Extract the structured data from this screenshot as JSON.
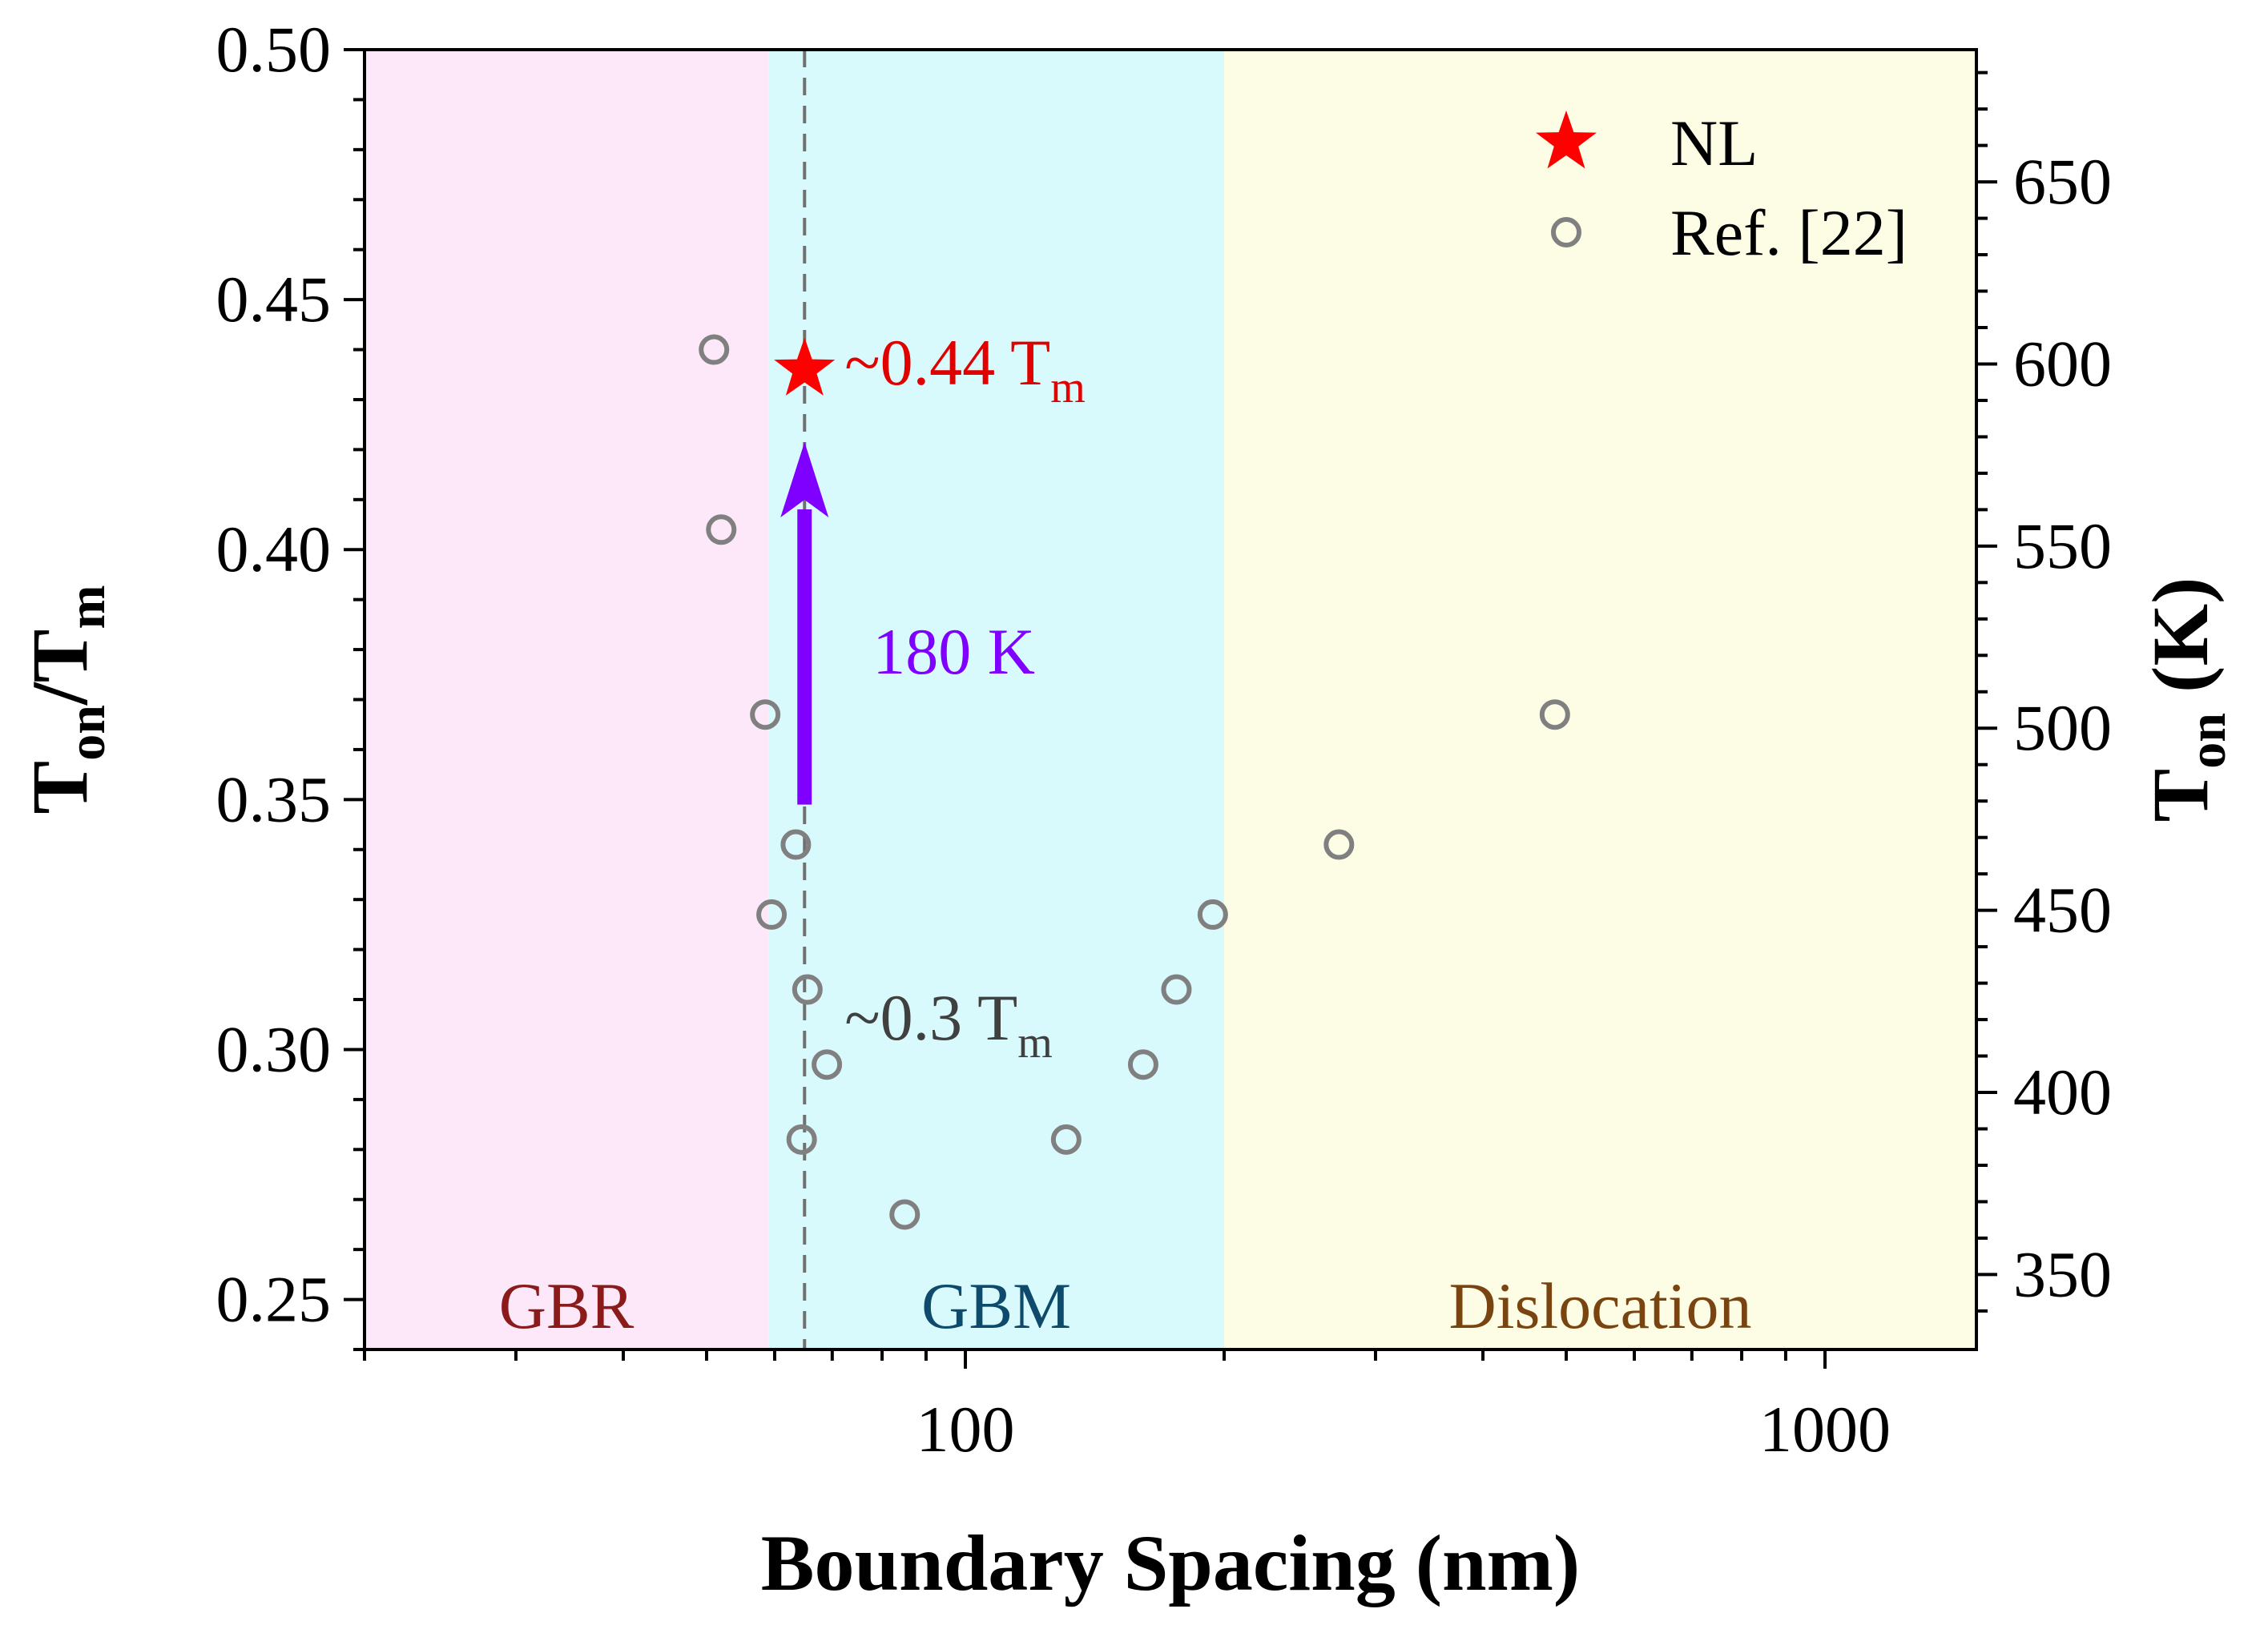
{
  "chart_data": {
    "type": "scatter",
    "title": "",
    "xlabel": "Boundary Spacing (nm)",
    "ylabel_left": {
      "main": "T",
      "sub1": "on",
      "sep": "/T",
      "sub2": "m"
    },
    "ylabel_right": {
      "main": "T",
      "sub": "on",
      "rest": " (K)"
    },
    "xscale": "log",
    "xlim": [
      20,
      1500
    ],
    "ylim": [
      0.24,
      0.5
    ],
    "y2lim": [
      329.42,
      686.3
    ],
    "x_ticks": [
      100,
      1000
    ],
    "x_tick_labels": [
      "100",
      "1000"
    ],
    "y_ticks": [
      0.25,
      0.3,
      0.35,
      0.4,
      0.45,
      0.5
    ],
    "y_tick_labels": [
      "0.25",
      "0.30",
      "0.35",
      "0.40",
      "0.45",
      "0.50"
    ],
    "y2_ticks": [
      350,
      400,
      450,
      500,
      550,
      600,
      650
    ],
    "y2_tick_labels": [
      "350",
      "400",
      "450",
      "500",
      "550",
      "600",
      "650"
    ],
    "regions": [
      {
        "label": "GBR",
        "x_range": [
          20,
          59
        ],
        "fill": "#fde8fa",
        "text_color": "#8b1a1a"
      },
      {
        "label": "GBM",
        "x_range": [
          59,
          200
        ],
        "fill": "#d9fafd",
        "text_color": "#0d4a6b"
      },
      {
        "label": "Dislocation",
        "x_range": [
          200,
          1500
        ],
        "fill": "#fdfde6",
        "text_color": "#7a4410"
      }
    ],
    "vline_x": 65,
    "series": [
      {
        "name": "NL",
        "marker": "star",
        "color": "#ff0000",
        "points": [
          {
            "x": 65,
            "y": 0.436
          }
        ]
      },
      {
        "name": "Ref. [22]",
        "marker": "open-circle",
        "color": "#808080",
        "points": [
          {
            "x": 51,
            "y": 0.44
          },
          {
            "x": 52,
            "y": 0.404
          },
          {
            "x": 58.5,
            "y": 0.367
          },
          {
            "x": 63.5,
            "y": 0.341
          },
          {
            "x": 59.5,
            "y": 0.327
          },
          {
            "x": 65.5,
            "y": 0.312
          },
          {
            "x": 69,
            "y": 0.297
          },
          {
            "x": 64.5,
            "y": 0.282
          },
          {
            "x": 85,
            "y": 0.267
          },
          {
            "x": 131,
            "y": 0.282
          },
          {
            "x": 161,
            "y": 0.297
          },
          {
            "x": 176,
            "y": 0.312
          },
          {
            "x": 194,
            "y": 0.327
          },
          {
            "x": 272,
            "y": 0.341
          },
          {
            "x": 485,
            "y": 0.367
          }
        ]
      }
    ],
    "annotations": [
      {
        "id": "high",
        "text": "~0.44 T",
        "sub": "m",
        "x": 65,
        "y": 0.4375,
        "color": "#e00000"
      },
      {
        "id": "low",
        "text": "~0.3 T",
        "sub": "m",
        "x": 65,
        "y": 0.3065,
        "color": "#404040"
      },
      {
        "id": "delta",
        "text": "180 K",
        "x": 65,
        "y": 0.38,
        "color": "#8000ff"
      }
    ],
    "arrow": {
      "x": 65,
      "y_from": 0.349,
      "y_to": 0.4215,
      "color": "#8000ff"
    },
    "legend_position": "top-right"
  }
}
